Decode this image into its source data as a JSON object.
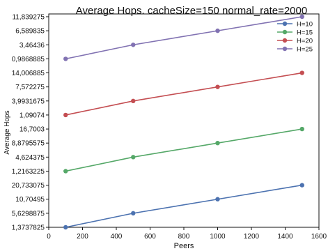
{
  "chart_data": {
    "type": "line",
    "title": "Average Hops. cacheSize=150 normal_rate=2000",
    "xlabel": "Peers",
    "ylabel": "Average Hops",
    "xlim": [
      0,
      1600
    ],
    "x_ticks": [
      "0",
      "200",
      "400",
      "600",
      "800",
      "1000",
      "1200",
      "1400",
      "1600"
    ],
    "y_ticks": [
      "11,839275",
      "6,589835",
      "3,46436",
      "0,9868885",
      "14,006885",
      "7,572275",
      "3,9931675",
      "1,09074",
      "16,7003",
      "8,8795575",
      "4,624375",
      "1,2163225",
      "20,733075",
      "10,70495",
      "5,6298875",
      "1,3737825"
    ],
    "x": [
      100,
      500,
      1000,
      1500
    ],
    "series": [
      {
        "name": "H=10",
        "color": "#4c72b0",
        "values": [
          1.3737825,
          5.6298875,
          10.70495,
          20.733075
        ]
      },
      {
        "name": "H=15",
        "color": "#55a868",
        "values": [
          1.2163225,
          4.624375,
          8.8795575,
          16.7003
        ]
      },
      {
        "name": "H=20",
        "color": "#c44e52",
        "values": [
          1.09074,
          3.9931675,
          7.572275,
          14.006885
        ]
      },
      {
        "name": "H=25",
        "color": "#8172b2",
        "values": [
          0.9868885,
          3.46436,
          6.589835,
          11.839275
        ]
      }
    ],
    "grid": false,
    "legend_position": "top-right"
  }
}
